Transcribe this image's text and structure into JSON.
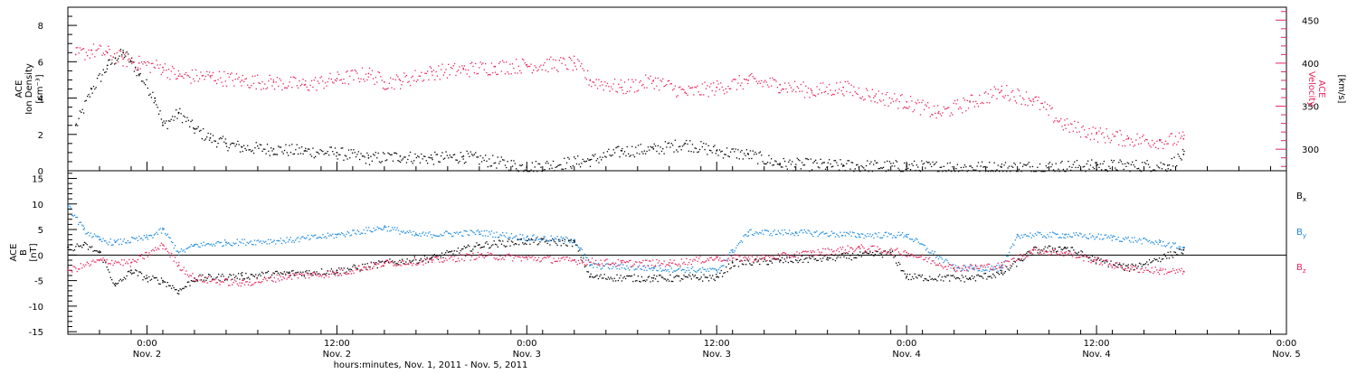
{
  "chart_data": [
    {
      "type": "scatter",
      "panel": "top",
      "title": "",
      "xlabel": "hours:minutes, Nov. 1, 2011 - Nov. 5, 2011",
      "x_range": [
        "2011-11-01 19:00",
        "2011-11-05 00:00"
      ],
      "x_ticks": [
        {
          "time": "2011-11-02 00:00",
          "line1": "0:00",
          "line2": "Nov. 2"
        },
        {
          "time": "2011-11-02 12:00",
          "line1": "12:00",
          "line2": "Nov. 2"
        },
        {
          "time": "2011-11-03 00:00",
          "line1": "0:00",
          "line2": "Nov. 3"
        },
        {
          "time": "2011-11-03 12:00",
          "line1": "12:00",
          "line2": "Nov. 3"
        },
        {
          "time": "2011-11-04 00:00",
          "line1": "0:00",
          "line2": "Nov. 4"
        },
        {
          "time": "2011-11-04 12:00",
          "line1": "12:00",
          "line2": "Nov. 4"
        },
        {
          "time": "2011-11-05 00:00",
          "line1": "0:00",
          "line2": "Nov. 5"
        }
      ],
      "left_axis": {
        "label_lines": [
          "ACE",
          "Ion Density"
        ],
        "unit_label": "[cm⁻³]",
        "ylim": [
          0,
          9
        ],
        "ticks": [
          0,
          2,
          4,
          6,
          8
        ],
        "color": "#000000"
      },
      "right_axis": {
        "label_lines": [
          "ACE",
          "Velocity"
        ],
        "unit_label": "[km/s]",
        "ylim": [
          275,
          465
        ],
        "ticks": [
          300,
          350,
          400,
          450
        ],
        "color": "#e8245a"
      },
      "series": [
        {
          "axis": "left",
          "color": "#000000",
          "x": [
            "2011-11-01 19:30",
            "2011-11-01 20:30",
            "2011-11-01 21:30",
            "2011-11-01 22:00",
            "2011-11-01 22:30",
            "2011-11-01 23:00",
            "2011-11-01 23:30",
            "2011-11-02 00:30",
            "2011-11-02 01:00",
            "2011-11-02 02:00",
            "2011-11-02 03:00",
            "2011-11-02 04:00",
            "2011-11-02 05:00",
            "2011-11-02 06:00",
            "2011-11-02 08:00",
            "2011-11-02 10:00",
            "2011-11-02 12:00",
            "2011-11-02 14:00",
            "2011-11-02 16:00",
            "2011-11-02 18:00",
            "2011-11-02 20:00",
            "2011-11-03 00:00",
            "2011-11-03 04:00",
            "2011-11-03 06:00",
            "2011-11-03 08:00",
            "2011-11-03 10:00",
            "2011-11-03 12:00",
            "2011-11-03 14:00",
            "2011-11-03 16:00",
            "2011-11-03 20:00",
            "2011-11-04 00:00",
            "2011-11-04 06:00",
            "2011-11-04 12:00",
            "2011-11-04 16:30",
            "2011-11-04 17:30"
          ],
          "y": [
            2.5,
            4.5,
            5.8,
            6.2,
            6.5,
            6.0,
            5.3,
            4.0,
            2.5,
            3.2,
            2.3,
            1.8,
            1.5,
            1.3,
            1.2,
            1.1,
            1.0,
            0.7,
            0.8,
            0.7,
            0.8,
            0.2,
            0.6,
            1.1,
            1.2,
            1.5,
            1.1,
            0.9,
            0.4,
            0.3,
            0.25,
            0.2,
            0.3,
            0.3,
            0.9
          ]
        },
        {
          "axis": "right",
          "color": "#e8245a",
          "x": [
            "2011-11-01 19:30",
            "2011-11-01 20:30",
            "2011-11-01 21:30",
            "2011-11-01 22:30",
            "2011-11-01 23:30",
            "2011-11-02 01:00",
            "2011-11-02 02:00",
            "2011-11-02 04:00",
            "2011-11-02 06:00",
            "2011-11-02 08:00",
            "2011-11-02 10:00",
            "2011-11-02 12:00",
            "2011-11-02 14:00",
            "2011-11-02 15:00",
            "2011-11-02 16:00",
            "2011-11-02 18:00",
            "2011-11-02 20:00",
            "2011-11-02 22:00",
            "2011-11-03 00:00",
            "2011-11-03 03:00",
            "2011-11-03 04:00",
            "2011-11-03 06:00",
            "2011-11-03 08:00",
            "2011-11-03 10:00",
            "2011-11-03 12:00",
            "2011-11-03 14:00",
            "2011-11-03 16:00",
            "2011-11-03 18:00",
            "2011-11-03 20:00",
            "2011-11-03 22:00",
            "2011-11-04 00:00",
            "2011-11-04 02:00",
            "2011-11-04 04:00",
            "2011-11-04 06:00",
            "2011-11-04 08:00",
            "2011-11-04 10:00",
            "2011-11-04 12:00",
            "2011-11-04 14:00",
            "2011-11-04 16:00",
            "2011-11-04 17:30"
          ],
          "y": [
            410,
            415,
            412,
            405,
            400,
            395,
            385,
            385,
            380,
            378,
            375,
            382,
            388,
            378,
            380,
            390,
            393,
            396,
            398,
            400,
            380,
            372,
            380,
            366,
            372,
            380,
            375,
            368,
            372,
            362,
            355,
            342,
            355,
            368,
            358,
            328,
            318,
            312,
            310,
            312
          ]
        }
      ]
    },
    {
      "type": "scatter",
      "panel": "bottom",
      "title": "",
      "xlabel": "hours:minutes, Nov. 1, 2011 - Nov. 5, 2011",
      "left_axis": {
        "label_lines": [
          "ACE",
          "B"
        ],
        "unit_label": "[nT]",
        "ylim": [
          -15.5,
          16.5
        ],
        "ticks": [
          -15,
          -10,
          -5,
          0,
          5,
          10,
          15
        ],
        "color": "#000000"
      },
      "zero_line": true,
      "series": [
        {
          "name": "Bx",
          "legend_main": "B",
          "legend_sub": "x",
          "color": "#000000",
          "x": [
            "2011-11-01 19:00",
            "2011-11-01 20:00",
            "2011-11-01 21:00",
            "2011-11-01 22:00",
            "2011-11-01 23:00",
            "2011-11-02 00:00",
            "2011-11-02 01:00",
            "2011-11-02 02:00",
            "2011-11-02 03:00",
            "2011-11-02 06:00",
            "2011-11-02 09:00",
            "2011-11-02 12:00",
            "2011-11-02 15:00",
            "2011-11-02 18:00",
            "2011-11-02 21:00",
            "2011-11-03 00:00",
            "2011-11-03 03:00",
            "2011-11-03 04:00",
            "2011-11-03 08:00",
            "2011-11-03 12:00",
            "2011-11-03 13:00",
            "2011-11-03 16:00",
            "2011-11-03 19:00",
            "2011-11-03 23:00",
            "2011-11-04 00:00",
            "2011-11-04 04:00",
            "2011-11-04 06:00",
            "2011-11-04 08:00",
            "2011-11-04 10:00",
            "2011-11-04 12:00",
            "2011-11-04 14:00",
            "2011-11-04 17:30"
          ],
          "y": [
            1.5,
            2.0,
            0.5,
            -6.0,
            -3.0,
            -4.5,
            -5.0,
            -7.0,
            -4.5,
            -4.0,
            -3.5,
            -3.0,
            -1.5,
            -0.5,
            2.0,
            2.8,
            2.5,
            -4.2,
            -4.5,
            -4.3,
            -1.5,
            -1.0,
            -0.5,
            0.5,
            -4.2,
            -4.5,
            -3.5,
            1.0,
            1.5,
            -1.0,
            -2.5,
            1.0
          ]
        },
        {
          "name": "By",
          "legend_main": "B",
          "legend_sub": "y",
          "color": "#1a8ae0",
          "x": [
            "2011-11-01 19:00",
            "2011-11-01 20:00",
            "2011-11-01 21:00",
            "2011-11-01 22:00",
            "2011-11-02 00:00",
            "2011-11-02 01:00",
            "2011-11-02 02:00",
            "2011-11-02 03:00",
            "2011-11-02 05:00",
            "2011-11-02 09:00",
            "2011-11-02 12:00",
            "2011-11-02 15:00",
            "2011-11-02 17:00",
            "2011-11-02 21:00",
            "2011-11-03 00:00",
            "2011-11-03 03:00",
            "2011-11-03 04:00",
            "2011-11-03 08:00",
            "2011-11-03 12:00",
            "2011-11-03 13:00",
            "2011-11-03 14:00",
            "2011-11-03 17:00",
            "2011-11-03 21:00",
            "2011-11-04 00:00",
            "2011-11-04 03:00",
            "2011-11-04 06:00",
            "2011-11-04 07:00",
            "2011-11-04 10:00",
            "2011-11-04 13:00",
            "2011-11-04 16:00",
            "2011-11-04 17:30"
          ],
          "y": [
            9.5,
            5.0,
            3.0,
            2.5,
            3.5,
            5.0,
            0.5,
            2.0,
            2.5,
            3.0,
            4.0,
            5.5,
            4.0,
            4.5,
            3.5,
            3.0,
            -2.0,
            -2.5,
            -3.0,
            1.0,
            4.5,
            4.5,
            4.0,
            4.0,
            -2.5,
            -2.5,
            4.0,
            4.0,
            3.5,
            2.5,
            1.5
          ]
        },
        {
          "name": "Bz",
          "legend_main": "B",
          "legend_sub": "z",
          "color": "#e8245a",
          "x": [
            "2011-11-01 19:00",
            "2011-11-01 21:00",
            "2011-11-01 23:00",
            "2011-11-02 01:00",
            "2011-11-02 02:00",
            "2011-11-02 03:00",
            "2011-11-02 06:00",
            "2011-11-02 09:00",
            "2011-11-02 12:00",
            "2011-11-02 15:00",
            "2011-11-02 18:00",
            "2011-11-02 21:00",
            "2011-11-03 00:00",
            "2011-11-03 03:00",
            "2011-11-03 06:00",
            "2011-11-03 09:00",
            "2011-11-03 12:00",
            "2011-11-03 15:00",
            "2011-11-03 18:00",
            "2011-11-03 21:00",
            "2011-11-04 00:00",
            "2011-11-04 03:00",
            "2011-11-04 06:00",
            "2011-11-04 08:00",
            "2011-11-04 10:00",
            "2011-11-04 12:00",
            "2011-11-04 14:00",
            "2011-11-04 16:00",
            "2011-11-04 17:30"
          ],
          "y": [
            -3.0,
            -1.0,
            -1.5,
            2.0,
            -2.0,
            -4.5,
            -5.5,
            -4.0,
            -3.5,
            -1.5,
            -1.0,
            0.0,
            -0.5,
            -1.0,
            -1.5,
            -1.5,
            -0.5,
            -0.5,
            0.5,
            1.5,
            0.5,
            -2.5,
            -2.0,
            1.0,
            0.5,
            -1.0,
            -2.5,
            -3.0,
            -3.2
          ]
        }
      ]
    }
  ]
}
